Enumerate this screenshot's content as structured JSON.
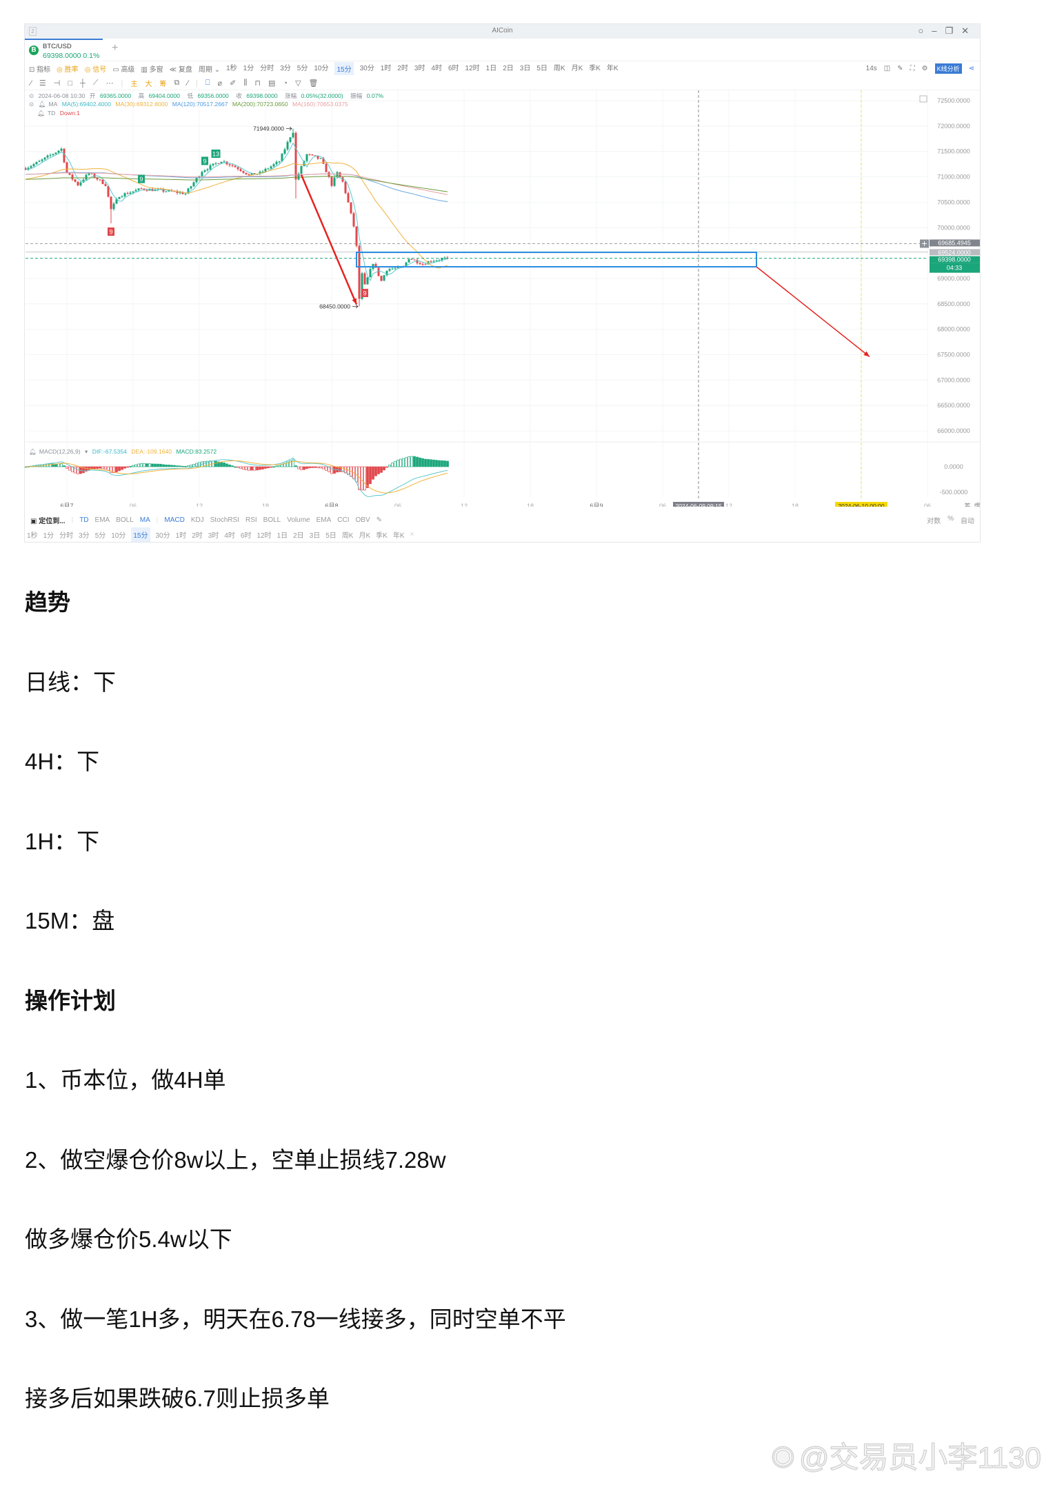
{
  "window": {
    "number": "2",
    "title": "AICoin",
    "controls": [
      "search-icon",
      "minimize-icon",
      "restore-icon",
      "close-icon"
    ]
  },
  "tab": {
    "symbol": "BTC/USD",
    "price": "69398.0000",
    "change": "0.1%",
    "coin_letter": "B",
    "add": "+"
  },
  "toolbar": {
    "items": [
      "指标",
      "胜率",
      "信号",
      "高级",
      "多窗",
      "复盘",
      "周期"
    ],
    "periods": [
      "1秒",
      "1分",
      "分时",
      "3分",
      "5分",
      "10分",
      "15分",
      "30分",
      "1时",
      "2时",
      "3时",
      "4时",
      "6时",
      "12时",
      "1日",
      "2日",
      "3日",
      "5日",
      "周K",
      "月K",
      "季K",
      "年K"
    ],
    "selected_period": "15分",
    "countdown": "14s",
    "kline_analysis": "K线分析"
  },
  "draw_tools": {
    "labels": [
      "主",
      "大",
      "筹"
    ]
  },
  "info": {
    "ohlc": {
      "datetime": "2024-06-08 10:30",
      "open_label": "开",
      "open": "69365.0000",
      "high_label": "高",
      "high": "69404.0000",
      "low_label": "低",
      "low": "69356.0000",
      "close_label": "收",
      "close": "69398.0000",
      "chg_label": "涨幅",
      "chg": "0.05%(32.0000)",
      "amp_label": "振幅",
      "amp": "0.07%"
    },
    "ma": {
      "label": "MA",
      "ma5": "MA(5):69402.4000",
      "ma30": "MA(30):69312.8000",
      "ma120": "MA(120):70517.2667",
      "ma200": "MA(200):70723.0650",
      "ma160": "MA(160):70653.0375"
    },
    "td": {
      "label": "TD",
      "value": "Down:1"
    }
  },
  "colors": {
    "up": "#1aa57a",
    "down": "#e0474c",
    "ma5": "#5cc8d0",
    "ma30": "#f0b23a",
    "ma120": "#6aa9e0",
    "ma200": "#6a9a3a",
    "ma160": "#e8a0a0",
    "accent": "#3a7bd5",
    "annotation": "#e52320"
  },
  "chart_data": {
    "type": "candlestick",
    "interval": "15分",
    "price_axis": [
      "72500.0000",
      "72000.0000",
      "71500.0000",
      "71000.0000",
      "70500.0000",
      "70000.0000",
      "69000.0000",
      "68500.0000",
      "68000.0000",
      "67500.0000",
      "67000.0000",
      "66500.0000",
      "66000.0000"
    ],
    "ylim": [
      65900,
      72700
    ],
    "time_axis": [
      "6月7",
      "06",
      "12",
      "18",
      "6月8",
      "06",
      "12",
      "18",
      "6月9",
      "06",
      "12",
      "18",
      "06"
    ],
    "price_path": [
      [
        "2024-06-06 20:15",
        71170
      ],
      [
        "2024-06-06 21:30",
        71300
      ],
      [
        "2024-06-06 23:30",
        71550
      ],
      [
        "2024-06-07 00:00",
        71075
      ],
      [
        "2024-06-07 01:00",
        70845
      ],
      [
        "2024-06-07 02:00",
        71075
      ],
      [
        "2024-06-07 03:30",
        70845
      ],
      [
        "2024-06-07 04:00",
        70360
      ],
      [
        "2024-06-07 04:45",
        70630
      ],
      [
        "2024-06-07 06:45",
        70765
      ],
      [
        "2024-06-07 09:30",
        70710
      ],
      [
        "2024-06-07 10:45",
        70670
      ],
      [
        "2024-06-07 12:15",
        71115
      ],
      [
        "2024-06-07 14:00",
        71320
      ],
      [
        "2024-06-07 15:30",
        71170
      ],
      [
        "2024-06-07 16:30",
        71035
      ],
      [
        "2024-06-07 17:30",
        71075
      ],
      [
        "2024-06-07 19:15",
        71305
      ],
      [
        "2024-06-07 20:15",
        71795
      ],
      [
        "2024-06-07 20:30",
        71890
      ],
      [
        "2024-06-07 20:45",
        70940
      ],
      [
        "2024-06-07 21:45",
        71440
      ],
      [
        "2024-06-07 23:00",
        71345
      ],
      [
        "2024-06-07 23:30",
        71115
      ],
      [
        "2024-06-08 00:00",
        70845
      ],
      [
        "2024-06-08 00:30",
        71075
      ],
      [
        "2024-06-08 01:00",
        70900
      ],
      [
        "2024-06-08 01:30",
        70490
      ],
      [
        "2024-06-08 02:00",
        70030
      ],
      [
        "2024-06-08 02:15",
        69625
      ],
      [
        "2024-06-08 02:30",
        68600
      ],
      [
        "2024-06-08 02:45",
        69080
      ],
      [
        "2024-06-08 03:00",
        68860
      ],
      [
        "2024-06-08 03:45",
        69310
      ],
      [
        "2024-06-08 04:30",
        68950
      ],
      [
        "2024-06-08 05:00",
        69180
      ],
      [
        "2024-06-08 06:30",
        69220
      ],
      [
        "2024-06-08 07:00",
        69405
      ],
      [
        "2024-06-08 08:15",
        69285
      ],
      [
        "2024-06-08 09:00",
        69350
      ],
      [
        "2024-06-08 10:30",
        69398
      ]
    ],
    "extremes": [
      {
        "time": "2024-06-07 20:30",
        "type": "high",
        "price": 71949,
        "label": "71949.0000"
      },
      {
        "time": "2024-06-08 02:30",
        "type": "low",
        "price": 68450,
        "label": "68450.0000"
      },
      {
        "time": "2024-06-07 04:00",
        "type": "low",
        "price": 70085
      },
      {
        "time": "2024-06-07 20:45",
        "type": "low",
        "price": 70575
      }
    ],
    "td_markers": [
      {
        "time": "2024-06-07 04:00",
        "text": "9",
        "dir": "down"
      },
      {
        "time": "2024-06-07 06:45",
        "text": "9",
        "dir": "up"
      },
      {
        "time": "2024-06-07 12:30",
        "text": "9",
        "dir": "up"
      },
      {
        "time": "2024-06-07 13:30",
        "text": "13",
        "dir": "up"
      },
      {
        "time": "2024-06-08 03:00",
        "text": "9",
        "dir": "down"
      }
    ],
    "price_tags": [
      {
        "value": "69685.4945",
        "price": 69685.4945,
        "style": "crosshair"
      },
      {
        "value": "69524.0000",
        "price": 69524,
        "style": "line"
      },
      {
        "value": "69398.0000",
        "price": 69398,
        "style": "last"
      }
    ],
    "countdown_tag": "04:33",
    "zone": {
      "from": "2024-06-08 02:15",
      "to": "2024-06-09 14:30",
      "price_top": 69515,
      "price_bottom": 69230
    },
    "arrows": [
      {
        "from": [
          "2024-06-07 21:15",
          71040
        ],
        "to": [
          "2024-06-08 02:15",
          68490
        ]
      },
      {
        "from": [
          "2024-06-09 14:30",
          69230
        ],
        "to": [
          "2024-06-10 00:45",
          67460
        ]
      }
    ],
    "cursor_time": "2024-06-09 09:15",
    "marker_time": "2024-06-10 00:00",
    "macd": {
      "label": "MACD(12,26,9)",
      "dif": "DIF:-67.5354",
      "dea": "DEA:-109.1640",
      "macd": "MACD:83.2572",
      "axis": [
        "0.0000",
        "-500.0000"
      ]
    }
  },
  "bottom": {
    "locate": "定位到...",
    "main_indicators": [
      "TD",
      "EMA",
      "BOLL",
      "MA"
    ],
    "sub_indicators": [
      "MACD",
      "KDJ",
      "StochRSI",
      "RSI",
      "BOLL",
      "Volume",
      "EMA",
      "CCI",
      "OBV"
    ],
    "axis_opts": [
      "筹",
      "爆"
    ],
    "scale_opts": [
      "对数",
      "%",
      "自动"
    ],
    "close": "×"
  },
  "article": [
    {
      "text": "趋势",
      "heading": true
    },
    {
      "text": "日线：下"
    },
    {
      "text": "4H：下"
    },
    {
      "text": "1H：下"
    },
    {
      "text": "15M：盘"
    },
    {
      "text": "操作计划",
      "heading": true
    },
    {
      "text": "1、币本位，做4H单"
    },
    {
      "text": "2、做空爆仓价8w以上，空单止损线7.28w"
    },
    {
      "text": "做多爆仓价5.4w以下"
    },
    {
      "text": "3、做一笔1H多，明天在6.78一线接多，同时空单不平"
    },
    {
      "text": "接多后如果跌破6.7则止损多单"
    }
  ],
  "watermark": "@交易员小李1130"
}
